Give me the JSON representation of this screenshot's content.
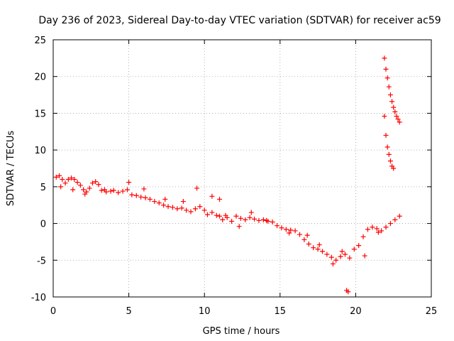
{
  "chart_data": {
    "type": "scatter",
    "title": "Day 236 of 2023, Sidereal Day-to-day VTEC variation (SDTVAR) for receiver ac59",
    "xlabel": "GPS time / hours",
    "ylabel": "SDTVAR / TECUs",
    "xlim": [
      0,
      25
    ],
    "ylim": [
      -10,
      25
    ],
    "x_ticks": [
      0,
      5,
      10,
      15,
      20,
      25
    ],
    "y_ticks": [
      -10,
      -5,
      0,
      5,
      10,
      15,
      20,
      25
    ],
    "x_tick_labels": [
      "0",
      "5",
      "10",
      "15",
      "20",
      "25"
    ],
    "y_tick_labels": [
      "-10",
      "-5",
      "0",
      "5",
      "10",
      "15",
      "20",
      "25"
    ],
    "grid": true,
    "legend": "none",
    "marker": "+",
    "color": "#ff0000",
    "series": [
      {
        "name": "SDTVAR",
        "x": [
          0.2,
          0.4,
          0.6,
          0.8,
          1.0,
          1.2,
          1.4,
          1.6,
          1.8,
          2.0,
          2.2,
          2.4,
          2.6,
          2.8,
          3.0,
          3.2,
          3.5,
          3.8,
          4.0,
          4.3,
          4.6,
          4.9,
          5.2,
          5.5,
          5.8,
          6.1,
          6.4,
          6.7,
          7.0,
          7.3,
          7.6,
          7.9,
          8.2,
          8.5,
          8.8,
          9.1,
          9.4,
          9.7,
          10.0,
          10.2,
          10.5,
          10.8,
          11.0,
          11.2,
          11.5,
          11.8,
          12.1,
          12.4,
          12.7,
          13.0,
          13.3,
          13.6,
          13.9,
          14.2,
          14.5,
          14.8,
          15.1,
          15.4,
          15.7,
          16.0,
          16.3,
          16.6,
          16.9,
          17.2,
          17.5,
          17.8,
          18.1,
          18.4,
          18.7,
          19.0,
          19.3,
          19.6,
          19.9,
          20.2,
          20.5,
          20.8,
          21.1,
          21.4,
          21.7,
          22.0,
          22.3,
          22.6,
          22.9,
          19.4,
          19.5,
          21.9,
          22.0,
          22.1,
          22.2,
          22.3,
          22.4,
          22.5,
          21.9,
          22.0,
          22.1,
          22.2,
          22.3,
          22.4,
          22.5,
          22.6,
          22.7,
          22.8,
          22.9,
          0.5,
          1.3,
          2.1,
          3.4,
          5.0,
          6.0,
          7.4,
          8.6,
          9.5,
          10.5,
          11.0,
          11.4,
          12.3,
          13.1,
          14.1,
          15.6,
          16.8,
          17.6,
          18.5,
          19.1,
          20.6,
          21.5
        ],
        "y": [
          6.3,
          6.5,
          6.0,
          5.5,
          6.0,
          6.2,
          6.0,
          5.6,
          5.2,
          4.6,
          4.3,
          4.8,
          5.5,
          5.7,
          5.3,
          4.5,
          4.3,
          4.4,
          4.5,
          4.2,
          4.4,
          4.6,
          3.9,
          3.8,
          3.6,
          3.5,
          3.3,
          3.0,
          2.8,
          2.5,
          2.3,
          2.2,
          2.0,
          2.1,
          1.8,
          1.6,
          2.0,
          2.3,
          1.8,
          1.2,
          1.5,
          1.1,
          1.0,
          0.5,
          0.8,
          0.3,
          1.0,
          0.7,
          0.5,
          0.8,
          0.6,
          0.4,
          0.5,
          0.3,
          0.2,
          -0.3,
          -0.6,
          -0.8,
          -0.9,
          -1.0,
          -1.5,
          -2.2,
          -2.8,
          -3.3,
          -3.5,
          -3.8,
          -4.2,
          -4.6,
          -5.0,
          -4.5,
          -4.2,
          -4.7,
          -3.5,
          -3.0,
          -1.8,
          -0.8,
          -0.5,
          -0.7,
          -1.0,
          -0.5,
          0.0,
          0.5,
          1.0,
          -9.1,
          -9.3,
          22.5,
          21.0,
          19.8,
          18.6,
          17.5,
          16.6,
          15.8,
          14.6,
          12.0,
          10.4,
          9.4,
          8.5,
          7.8,
          7.5,
          15.2,
          14.6,
          14.2,
          13.8,
          5.0,
          4.6,
          4.0,
          4.6,
          5.6,
          4.7,
          3.3,
          3.0,
          4.8,
          3.7,
          3.3,
          1.1,
          -0.4,
          1.5,
          0.4,
          -1.3,
          -1.6,
          -2.9,
          -5.5,
          -3.8,
          -4.4,
          -1.2
        ]
      }
    ]
  }
}
